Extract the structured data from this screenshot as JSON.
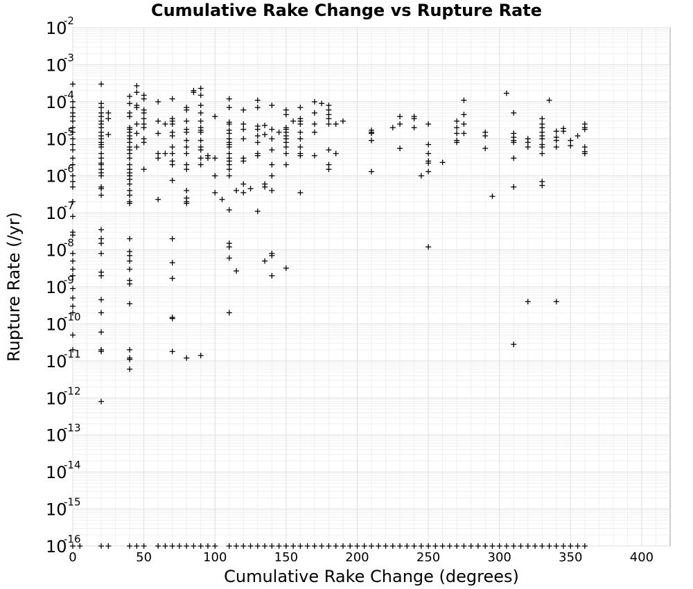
{
  "chart_data": {
    "type": "scatter",
    "title": "Cumulative Rake Change vs Rupture Rate",
    "xlabel": "Cumulative Rake Change (degrees)",
    "ylabel": "Rupture Rate (/yr)",
    "xlim": [
      0,
      420
    ],
    "ylim": [
      1e-16,
      0.01
    ],
    "y_scale": "log",
    "x_ticks": [
      0,
      50,
      100,
      150,
      200,
      250,
      300,
      350,
      400
    ],
    "y_tick_labels": [
      {
        "base": "10",
        "exp": "-2",
        "value": 0.01
      },
      {
        "base": "10",
        "exp": "-3",
        "value": 0.001
      },
      {
        "base": "10",
        "exp": "-4",
        "value": 0.0001
      },
      {
        "base": "10",
        "exp": "-5",
        "value": 1e-05
      },
      {
        "base": "10",
        "exp": "-6",
        "value": 1e-06
      },
      {
        "base": "10",
        "exp": "-7",
        "value": 1e-07
      },
      {
        "base": "10",
        "exp": "-8",
        "value": 1e-08
      },
      {
        "base": "10",
        "exp": "-9",
        "value": 1e-09
      },
      {
        "base": "10",
        "exp": "-10",
        "value": 1e-10
      },
      {
        "base": "10",
        "exp": "-11",
        "value": 1e-11
      },
      {
        "base": "10",
        "exp": "-12",
        "value": 1e-12
      },
      {
        "base": "10",
        "exp": "-13",
        "value": 1e-13
      },
      {
        "base": "10",
        "exp": "-14",
        "value": 1e-14
      },
      {
        "base": "10",
        "exp": "-15",
        "value": 1e-15
      },
      {
        "base": "10",
        "exp": "-16",
        "value": 1e-16
      }
    ],
    "grid": true,
    "marker": "plus",
    "marker_color": "#000000",
    "points": [
      [
        0,
        0.0003
      ],
      [
        0,
        0.0001
      ],
      [
        0,
        7e-05
      ],
      [
        0,
        5e-05
      ],
      [
        0,
        4e-05
      ],
      [
        0,
        3e-05
      ],
      [
        0,
        2e-05
      ],
      [
        0,
        1.5e-05
      ],
      [
        0,
        1e-05
      ],
      [
        0,
        7e-06
      ],
      [
        0,
        5e-06
      ],
      [
        0,
        3e-06
      ],
      [
        0,
        2e-06
      ],
      [
        0,
        1e-06
      ],
      [
        0,
        7e-07
      ],
      [
        0,
        5e-07
      ],
      [
        0,
        2e-07
      ],
      [
        0,
        8e-08
      ],
      [
        0,
        3e-08
      ],
      [
        0,
        2.5e-08
      ],
      [
        0,
        8e-09
      ],
      [
        0,
        5e-09
      ],
      [
        0,
        3e-09
      ],
      [
        0,
        2e-09
      ],
      [
        0,
        9e-10
      ],
      [
        0,
        5e-10
      ],
      [
        0,
        3e-10
      ],
      [
        0,
        2e-10
      ],
      [
        0,
        5e-11
      ],
      [
        0,
        2e-11
      ],
      [
        20,
        0.0003
      ],
      [
        20,
        9e-05
      ],
      [
        20,
        7e-05
      ],
      [
        20,
        5e-05
      ],
      [
        20,
        4e-05
      ],
      [
        20,
        3e-05
      ],
      [
        20,
        2.5e-05
      ],
      [
        20,
        2e-05
      ],
      [
        20,
        1.5e-05
      ],
      [
        20,
        1.2e-05
      ],
      [
        20,
        1e-05
      ],
      [
        20,
        8e-06
      ],
      [
        20,
        7e-06
      ],
      [
        20,
        6e-06
      ],
      [
        20,
        4e-06
      ],
      [
        20,
        3e-06
      ],
      [
        20,
        2.2e-06
      ],
      [
        20,
        2e-06
      ],
      [
        20,
        1.5e-06
      ],
      [
        20,
        1.2e-06
      ],
      [
        20,
        1e-06
      ],
      [
        20,
        5e-07
      ],
      [
        20,
        4.5e-07
      ],
      [
        20,
        3e-07
      ],
      [
        20,
        3.5e-08
      ],
      [
        20,
        2e-08
      ],
      [
        20,
        1.5e-08
      ],
      [
        20,
        8e-09
      ],
      [
        20,
        2.5e-09
      ],
      [
        20,
        2e-09
      ],
      [
        20,
        4.5e-10
      ],
      [
        20,
        2e-10
      ],
      [
        20,
        6e-11
      ],
      [
        20,
        2e-11
      ],
      [
        20,
        1.8e-11
      ],
      [
        20,
        8e-13
      ],
      [
        25,
        5e-05
      ],
      [
        25,
        3.5e-05
      ],
      [
        25,
        1.3e-05
      ],
      [
        40,
        0.00014
      ],
      [
        40,
        9e-05
      ],
      [
        40,
        5e-05
      ],
      [
        40,
        4e-05
      ],
      [
        40,
        2e-05
      ],
      [
        40,
        1.8e-05
      ],
      [
        40,
        1.5e-05
      ],
      [
        40,
        1.2e-05
      ],
      [
        40,
        1e-05
      ],
      [
        40,
        8e-06
      ],
      [
        40,
        6e-06
      ],
      [
        40,
        5e-06
      ],
      [
        40,
        4e-06
      ],
      [
        40,
        3e-06
      ],
      [
        40,
        2e-06
      ],
      [
        40,
        1.5e-06
      ],
      [
        40,
        1.2e-06
      ],
      [
        40,
        1e-06
      ],
      [
        40,
        8e-07
      ],
      [
        40,
        6e-07
      ],
      [
        40,
        4e-07
      ],
      [
        40,
        3e-07
      ],
      [
        40,
        2e-07
      ],
      [
        40,
        1.8e-07
      ],
      [
        40,
        2e-08
      ],
      [
        40,
        9e-09
      ],
      [
        40,
        7e-09
      ],
      [
        40,
        5e-09
      ],
      [
        40,
        3e-09
      ],
      [
        40,
        1.5e-09
      ],
      [
        40,
        1.2e-09
      ],
      [
        40,
        3.5e-10
      ],
      [
        40,
        2e-11
      ],
      [
        40,
        1.2e-11
      ],
      [
        40,
        1.1e-11
      ],
      [
        40,
        6e-12
      ],
      [
        45,
        0.00027
      ],
      [
        45,
        0.00018
      ],
      [
        45,
        8e-05
      ],
      [
        45,
        7e-05
      ],
      [
        45,
        2.5e-05
      ],
      [
        45,
        1.4e-05
      ],
      [
        45,
        6e-06
      ],
      [
        50,
        0.00015
      ],
      [
        50,
        0.00012
      ],
      [
        50,
        6e-05
      ],
      [
        50,
        5e-05
      ],
      [
        50,
        3.5e-05
      ],
      [
        50,
        2.5e-05
      ],
      [
        50,
        2e-05
      ],
      [
        50,
        1e-05
      ],
      [
        50,
        8e-06
      ],
      [
        50,
        1.5e-06
      ],
      [
        60,
        0.0001
      ],
      [
        60,
        3e-05
      ],
      [
        60,
        1.4e-05
      ],
      [
        60,
        4e-06
      ],
      [
        60,
        3e-06
      ],
      [
        60,
        2.3e-07
      ],
      [
        65,
        4e-06
      ],
      [
        65,
        2.5e-05
      ],
      [
        70,
        0.00012
      ],
      [
        70,
        3.5e-05
      ],
      [
        70,
        3e-05
      ],
      [
        70,
        2.5e-05
      ],
      [
        70,
        1.5e-05
      ],
      [
        70,
        1.2e-05
      ],
      [
        70,
        6e-06
      ],
      [
        70,
        4e-06
      ],
      [
        70,
        2.5e-06
      ],
      [
        70,
        2e-06
      ],
      [
        70,
        7.5e-07
      ],
      [
        70,
        2e-08
      ],
      [
        70,
        4.5e-09
      ],
      [
        70,
        1.7e-09
      ],
      [
        70,
        1.5e-10
      ],
      [
        70,
        1.4e-10
      ],
      [
        70,
        1.8e-11
      ],
      [
        80,
        7e-05
      ],
      [
        80,
        6e-05
      ],
      [
        80,
        3e-05
      ],
      [
        80,
        1.8e-05
      ],
      [
        80,
        1.5e-05
      ],
      [
        80,
        9e-06
      ],
      [
        80,
        6e-06
      ],
      [
        80,
        4e-06
      ],
      [
        80,
        2e-06
      ],
      [
        80,
        1.5e-06
      ],
      [
        80,
        4e-07
      ],
      [
        80,
        2.5e-07
      ],
      [
        80,
        2e-07
      ],
      [
        80,
        1.8e-07
      ],
      [
        80,
        1.2e-11
      ],
      [
        85,
        0.0002
      ],
      [
        85,
        0.00018
      ],
      [
        90,
        0.00023
      ],
      [
        90,
        0.00015
      ],
      [
        90,
        8e-05
      ],
      [
        90,
        5e-05
      ],
      [
        90,
        3e-05
      ],
      [
        90,
        2e-05
      ],
      [
        90,
        1.7e-05
      ],
      [
        90,
        1.5e-05
      ],
      [
        90,
        9e-06
      ],
      [
        90,
        6e-06
      ],
      [
        90,
        5e-06
      ],
      [
        90,
        3e-06
      ],
      [
        90,
        2e-06
      ],
      [
        90,
        1.4e-11
      ],
      [
        95,
        3e-06
      ],
      [
        95,
        3.5e-06
      ],
      [
        100,
        4e-05
      ],
      [
        100,
        3e-06
      ],
      [
        100,
        1e-06
      ],
      [
        100,
        3.5e-07
      ],
      [
        105,
        2.3e-07
      ],
      [
        110,
        0.00012
      ],
      [
        110,
        7e-05
      ],
      [
        110,
        2.8e-05
      ],
      [
        110,
        2.5e-05
      ],
      [
        110,
        1.7e-05
      ],
      [
        110,
        1.4e-05
      ],
      [
        110,
        1e-05
      ],
      [
        110,
        8e-06
      ],
      [
        110,
        7e-06
      ],
      [
        110,
        6e-06
      ],
      [
        110,
        4e-06
      ],
      [
        110,
        3e-06
      ],
      [
        110,
        2.5e-06
      ],
      [
        110,
        2e-06
      ],
      [
        110,
        1.5e-06
      ],
      [
        110,
        1e-06
      ],
      [
        110,
        1.2e-07
      ],
      [
        110,
        1.5e-08
      ],
      [
        110,
        1.2e-08
      ],
      [
        110,
        6e-09
      ],
      [
        110,
        2e-10
      ],
      [
        115,
        4e-07
      ],
      [
        115,
        2.7e-09
      ],
      [
        120,
        6e-05
      ],
      [
        120,
        2.5e-05
      ],
      [
        120,
        1.8e-05
      ],
      [
        120,
        1e-05
      ],
      [
        120,
        3e-06
      ],
      [
        120,
        2.5e-06
      ],
      [
        120,
        6e-07
      ],
      [
        120,
        3.5e-07
      ],
      [
        125,
        4.5e-07
      ],
      [
        130,
        0.00011
      ],
      [
        130,
        7e-05
      ],
      [
        130,
        2.2e-05
      ],
      [
        130,
        1.8e-05
      ],
      [
        130,
        1.2e-05
      ],
      [
        130,
        8e-06
      ],
      [
        130,
        4e-06
      ],
      [
        130,
        3.5e-06
      ],
      [
        130,
        1.1e-07
      ],
      [
        135,
        2.3e-05
      ],
      [
        135,
        1.3e-05
      ],
      [
        135,
        6e-07
      ],
      [
        135,
        5e-07
      ],
      [
        135,
        5e-09
      ],
      [
        140,
        8e-05
      ],
      [
        140,
        1.8e-05
      ],
      [
        140,
        1e-05
      ],
      [
        140,
        5e-06
      ],
      [
        140,
        2e-06
      ],
      [
        140,
        1e-06
      ],
      [
        140,
        4e-07
      ],
      [
        140,
        8e-09
      ],
      [
        140,
        7e-09
      ],
      [
        140,
        2e-09
      ],
      [
        145,
        1.5e-05
      ],
      [
        150,
        6e-05
      ],
      [
        150,
        4.5e-05
      ],
      [
        150,
        2e-05
      ],
      [
        150,
        1.8e-05
      ],
      [
        150,
        1.5e-05
      ],
      [
        150,
        1.2e-05
      ],
      [
        150,
        1e-05
      ],
      [
        150,
        8e-06
      ],
      [
        150,
        6e-06
      ],
      [
        150,
        4e-06
      ],
      [
        150,
        2e-06
      ],
      [
        150,
        3.2e-09
      ],
      [
        155,
        3e-05
      ],
      [
        160,
        7e-05
      ],
      [
        160,
        3.5e-05
      ],
      [
        160,
        3e-05
      ],
      [
        160,
        2.5e-05
      ],
      [
        160,
        1.5e-05
      ],
      [
        160,
        1e-05
      ],
      [
        160,
        6e-06
      ],
      [
        160,
        4e-06
      ],
      [
        160,
        3.5e-06
      ],
      [
        160,
        3.5e-07
      ],
      [
        170,
        0.0001
      ],
      [
        170,
        5e-05
      ],
      [
        170,
        2.5e-05
      ],
      [
        170,
        1.5e-05
      ],
      [
        170,
        3.5e-06
      ],
      [
        175,
        9e-05
      ],
      [
        180,
        8e-05
      ],
      [
        180,
        6e-05
      ],
      [
        180,
        4.5e-05
      ],
      [
        180,
        3.5e-05
      ],
      [
        180,
        2.5e-05
      ],
      [
        180,
        5e-06
      ],
      [
        180,
        2e-06
      ],
      [
        180,
        1.5e-06
      ],
      [
        185,
        2.5e-05
      ],
      [
        185,
        4e-06
      ],
      [
        190,
        3e-05
      ],
      [
        210,
        1.7e-05
      ],
      [
        210,
        1.5e-05
      ],
      [
        210,
        1.4e-05
      ],
      [
        210,
        9e-06
      ],
      [
        210,
        1.3e-06
      ],
      [
        225,
        2e-05
      ],
      [
        230,
        4e-05
      ],
      [
        230,
        2.5e-05
      ],
      [
        230,
        5.5e-06
      ],
      [
        240,
        4e-05
      ],
      [
        240,
        3.5e-05
      ],
      [
        240,
        2e-05
      ],
      [
        245,
        1e-06
      ],
      [
        250,
        2.5e-05
      ],
      [
        250,
        7e-06
      ],
      [
        250,
        4e-06
      ],
      [
        250,
        2.5e-06
      ],
      [
        250,
        2.2e-06
      ],
      [
        250,
        1.3e-06
      ],
      [
        250,
        1.2e-08
      ],
      [
        260,
        2.3e-06
      ],
      [
        270,
        3e-05
      ],
      [
        270,
        2e-05
      ],
      [
        270,
        1.4e-05
      ],
      [
        270,
        9e-06
      ],
      [
        270,
        8e-06
      ],
      [
        275,
        0.00011
      ],
      [
        275,
        4.5e-05
      ],
      [
        275,
        2.5e-05
      ],
      [
        275,
        1.4e-05
      ],
      [
        290,
        1.5e-05
      ],
      [
        290,
        1.2e-05
      ],
      [
        290,
        5.5e-06
      ],
      [
        295,
        2.8e-07
      ],
      [
        305,
        0.00017
      ],
      [
        310,
        5e-05
      ],
      [
        310,
        1.4e-05
      ],
      [
        310,
        1.1e-05
      ],
      [
        310,
        9e-06
      ],
      [
        310,
        8e-06
      ],
      [
        310,
        3e-06
      ],
      [
        310,
        5e-07
      ],
      [
        310,
        2.8e-11
      ],
      [
        320,
        1e-05
      ],
      [
        320,
        8e-06
      ],
      [
        320,
        6e-06
      ],
      [
        320,
        4e-10
      ],
      [
        330,
        3.5e-05
      ],
      [
        330,
        2.5e-05
      ],
      [
        330,
        2e-05
      ],
      [
        330,
        1.5e-05
      ],
      [
        330,
        1.2e-05
      ],
      [
        330,
        1e-05
      ],
      [
        330,
        7e-06
      ],
      [
        330,
        6e-06
      ],
      [
        330,
        4e-06
      ],
      [
        330,
        7e-07
      ],
      [
        330,
        5.5e-07
      ],
      [
        335,
        0.00011
      ],
      [
        340,
        1.6e-05
      ],
      [
        340,
        1.1e-05
      ],
      [
        340,
        9e-06
      ],
      [
        340,
        6e-06
      ],
      [
        340,
        4e-10
      ],
      [
        345,
        1.9e-05
      ],
      [
        345,
        1.6e-05
      ],
      [
        350,
        9e-06
      ],
      [
        350,
        6.5e-06
      ],
      [
        355,
        1.2e-05
      ],
      [
        360,
        2.5e-05
      ],
      [
        360,
        2e-05
      ],
      [
        360,
        1.8e-05
      ],
      [
        360,
        6e-06
      ],
      [
        360,
        4.5e-06
      ],
      [
        360,
        4e-06
      ]
    ],
    "floor_points_x": [
      0,
      5,
      20,
      25,
      40,
      45,
      50,
      60,
      65,
      70,
      75,
      80,
      85,
      90,
      95,
      100,
      110,
      115,
      120,
      125,
      130,
      135,
      140,
      145,
      150,
      155,
      160,
      165,
      170,
      175,
      180,
      185,
      190,
      195,
      200,
      205,
      210,
      215,
      220,
      225,
      230,
      235,
      240,
      245,
      250,
      255,
      260,
      265,
      270,
      275,
      280,
      285,
      290,
      295,
      300,
      305,
      310,
      315,
      320,
      325,
      330,
      335,
      340,
      345,
      350,
      355,
      360
    ],
    "floor_value": 1e-16
  }
}
